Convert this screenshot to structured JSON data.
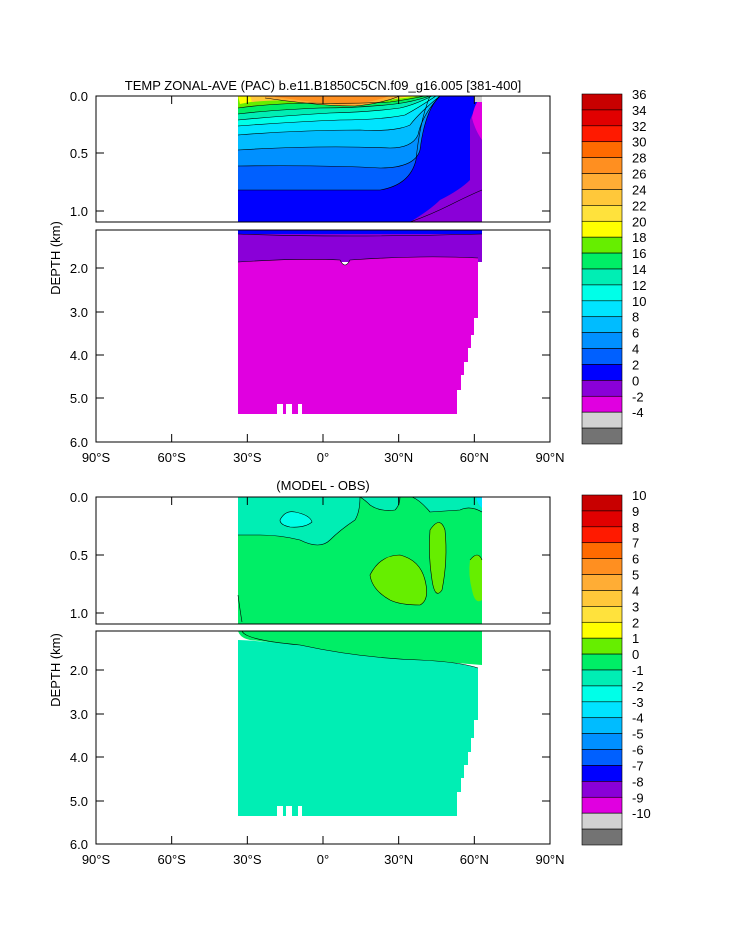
{
  "chart_data": [
    {
      "type": "heatmap",
      "title": "TEMP ZONAL-AVE (PAC) b.e11.B1850C5CN.f09_g16.005 [381-400]",
      "ylabel": "DEPTH (km)",
      "xlabel": "",
      "xlim": [
        -90,
        90
      ],
      "upper_ylim": [
        0.0,
        1.1
      ],
      "lower_ylim": [
        1.1,
        6.0
      ],
      "upper_yticks": [
        "0.0",
        "0.5",
        "1.0"
      ],
      "lower_yticks": [
        "2.0",
        "3.0",
        "4.0",
        "5.0",
        "6.0"
      ],
      "xticks": [
        {
          "value": -90,
          "label": "90°S"
        },
        {
          "value": -60,
          "label": "60°S"
        },
        {
          "value": -30,
          "label": "30°S"
        },
        {
          "value": 0,
          "label": "0°"
        },
        {
          "value": 30,
          "label": "30°N"
        },
        {
          "value": 60,
          "label": "60°N"
        },
        {
          "value": 90,
          "label": "90°N"
        }
      ],
      "data_extent_lat": [
        -34,
        62
      ],
      "colorbar_labels": [
        "36",
        "34",
        "32",
        "30",
        "28",
        "26",
        "24",
        "22",
        "20",
        "18",
        "16",
        "14",
        "12",
        "10",
        "8",
        "6",
        "4",
        "2",
        "0",
        "-2",
        "-4"
      ],
      "colorbar_colors": [
        "#c80000",
        "#e10000",
        "#ff1a00",
        "#ff6a00",
        "#ff8f20",
        "#ffad35",
        "#ffc83a",
        "#ffe23c",
        "#ffff00",
        "#66ee00",
        "#00ee66",
        "#00eeb4",
        "#00ffe8",
        "#00e4ff",
        "#00bcff",
        "#0090ff",
        "#0060ff",
        "#0000ff",
        "#8a00d8",
        "#e000e0",
        "#d2d2d2",
        "#737373"
      ],
      "levels_shown": {
        "surface_max": 30,
        "deep_value": 1
      }
    },
    {
      "type": "heatmap",
      "title": "(MODEL - OBS)",
      "ylabel": "DEPTH (km)",
      "xlabel": "",
      "xlim": [
        -90,
        90
      ],
      "upper_ylim": [
        0.0,
        1.1
      ],
      "lower_ylim": [
        1.1,
        6.0
      ],
      "upper_yticks": [
        "0.0",
        "0.5",
        "1.0"
      ],
      "lower_yticks": [
        "2.0",
        "3.0",
        "4.0",
        "5.0",
        "6.0"
      ],
      "xticks": [
        {
          "value": -90,
          "label": "90°S"
        },
        {
          "value": -60,
          "label": "60°S"
        },
        {
          "value": -30,
          "label": "30°S"
        },
        {
          "value": 0,
          "label": "0°"
        },
        {
          "value": 30,
          "label": "30°N"
        },
        {
          "value": 60,
          "label": "60°N"
        },
        {
          "value": 90,
          "label": "90°N"
        }
      ],
      "data_extent_lat": [
        -34,
        62
      ],
      "colorbar_labels": [
        "10",
        "9",
        "8",
        "7",
        "6",
        "5",
        "4",
        "3",
        "2",
        "1",
        "0",
        "-1",
        "-2",
        "-3",
        "-4",
        "-5",
        "-6",
        "-7",
        "-8",
        "-9",
        "-10"
      ],
      "colorbar_colors": [
        "#c80000",
        "#e10000",
        "#ff1a00",
        "#ff6a00",
        "#ff8f20",
        "#ffad35",
        "#ffc83a",
        "#ffe23c",
        "#ffff00",
        "#66ee00",
        "#00ee66",
        "#00eeb4",
        "#00ffe8",
        "#00e4ff",
        "#00bcff",
        "#0090ff",
        "#0060ff",
        "#0000ff",
        "#8a00d8",
        "#e000e0",
        "#d2d2d2",
        "#737373"
      ]
    }
  ]
}
